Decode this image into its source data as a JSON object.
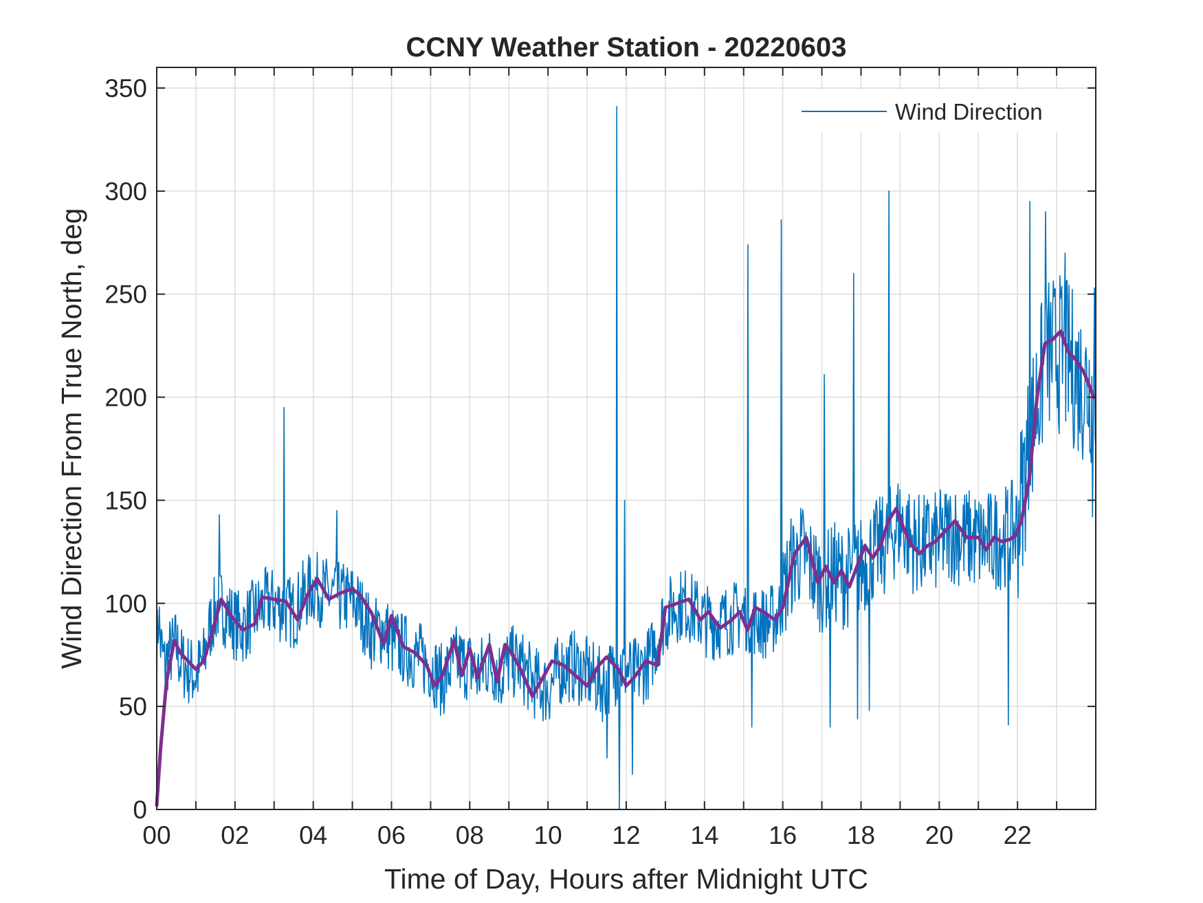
{
  "chart_data": {
    "type": "line",
    "title": "CCNY Weather Station - 20220603",
    "xlabel": "Time of Day, Hours after Midnight UTC",
    "ylabel": "Wind Direction From True North, deg",
    "xlim": [
      0,
      24
    ],
    "ylim": [
      0,
      360
    ],
    "x_ticks": [
      0,
      2,
      4,
      6,
      8,
      10,
      12,
      14,
      16,
      18,
      20,
      22
    ],
    "x_tick_labels": [
      "00",
      "02",
      "04",
      "06",
      "08",
      "10",
      "12",
      "14",
      "16",
      "18",
      "20",
      "22"
    ],
    "y_ticks": [
      0,
      50,
      100,
      150,
      200,
      250,
      300,
      350
    ],
    "y_tick_labels": [
      "0",
      "50",
      "100",
      "150",
      "200",
      "250",
      "300",
      "350"
    ],
    "grid": true,
    "legend": {
      "position": "top-right",
      "entries": [
        "Wind Direction"
      ]
    },
    "series": [
      {
        "name": "Wind Direction",
        "color": "#0072BD",
        "style": "raw",
        "anchors": [
          [
            0,
            75
          ],
          [
            0.05,
            95
          ],
          [
            0.1,
            80
          ],
          [
            0.2,
            70
          ],
          [
            0.3,
            75
          ],
          [
            0.5,
            80
          ],
          [
            0.6,
            72
          ],
          [
            0.8,
            68
          ],
          [
            1.0,
            65
          ],
          [
            1.2,
            72
          ],
          [
            1.4,
            92
          ],
          [
            1.6,
            100
          ],
          [
            1.8,
            95
          ],
          [
            2.0,
            90
          ],
          [
            2.2,
            88
          ],
          [
            2.5,
            95
          ],
          [
            2.8,
            100
          ],
          [
            3.0,
            100
          ],
          [
            3.2,
            98
          ],
          [
            3.5,
            95
          ],
          [
            3.8,
            105
          ],
          [
            4.0,
            108
          ],
          [
            4.3,
            105
          ],
          [
            4.6,
            103
          ],
          [
            5.0,
            102
          ],
          [
            5.2,
            97
          ],
          [
            5.5,
            85
          ],
          [
            5.8,
            88
          ],
          [
            6.0,
            82
          ],
          [
            6.3,
            78
          ],
          [
            6.6,
            75
          ],
          [
            7.0,
            70
          ],
          [
            7.3,
            62
          ],
          [
            7.6,
            72
          ],
          [
            8.0,
            70
          ],
          [
            8.2,
            65
          ],
          [
            8.5,
            72
          ],
          [
            8.8,
            65
          ],
          [
            9.0,
            72
          ],
          [
            9.3,
            70
          ],
          [
            9.6,
            62
          ],
          [
            10.0,
            58
          ],
          [
            10.3,
            68
          ],
          [
            10.6,
            70
          ],
          [
            11.0,
            66
          ],
          [
            11.4,
            60
          ],
          [
            11.8,
            70
          ],
          [
            12.0,
            68
          ],
          [
            12.3,
            66
          ],
          [
            12.6,
            72
          ],
          [
            12.9,
            90
          ],
          [
            13.2,
            98
          ],
          [
            13.5,
            100
          ],
          [
            13.8,
            95
          ],
          [
            14.0,
            92
          ],
          [
            14.3,
            90
          ],
          [
            14.6,
            92
          ],
          [
            15.0,
            95
          ],
          [
            15.3,
            92
          ],
          [
            15.6,
            90
          ],
          [
            15.9,
            95
          ],
          [
            16.2,
            118
          ],
          [
            16.5,
            125
          ],
          [
            16.8,
            115
          ],
          [
            17.0,
            110
          ],
          [
            17.3,
            115
          ],
          [
            17.6,
            112
          ],
          [
            18.0,
            118
          ],
          [
            18.3,
            125
          ],
          [
            18.6,
            128
          ],
          [
            19.0,
            140
          ],
          [
            19.3,
            130
          ],
          [
            19.6,
            128
          ],
          [
            20.0,
            130
          ],
          [
            20.3,
            135
          ],
          [
            20.6,
            132
          ],
          [
            21.0,
            130
          ],
          [
            21.3,
            130
          ],
          [
            21.6,
            132
          ],
          [
            21.9,
            135
          ],
          [
            22.0,
            138
          ],
          [
            22.2,
            165
          ],
          [
            22.5,
            200
          ],
          [
            22.8,
            220
          ],
          [
            23.0,
            222
          ],
          [
            23.3,
            218
          ],
          [
            23.6,
            208
          ],
          [
            23.9,
            205
          ]
        ],
        "spikes": [
          [
            1.6,
            143
          ],
          [
            3.25,
            195
          ],
          [
            4.6,
            145
          ],
          [
            11.5,
            25
          ],
          [
            11.75,
            341
          ],
          [
            11.82,
            0
          ],
          [
            11.95,
            150
          ],
          [
            12.15,
            17
          ],
          [
            15.1,
            274
          ],
          [
            15.2,
            40
          ],
          [
            15.95,
            286
          ],
          [
            16.6,
            120
          ],
          [
            17.05,
            211
          ],
          [
            17.2,
            40
          ],
          [
            17.8,
            260
          ],
          [
            17.9,
            44
          ],
          [
            18.7,
            300
          ],
          [
            18.2,
            48
          ],
          [
            21.75,
            41
          ],
          [
            22.3,
            295
          ],
          [
            22.7,
            290
          ],
          [
            23.0,
            195
          ],
          [
            23.2,
            270
          ],
          [
            23.9,
            142
          ],
          [
            23.95,
            253
          ]
        ],
        "noise_amplitude": 18,
        "samples": 1440
      },
      {
        "name": "",
        "color": "#7E2F8E",
        "style": "smoothed",
        "values_x": [
          0,
          0.1,
          0.25,
          0.45,
          0.6,
          0.8,
          1.0,
          1.2,
          1.4,
          1.65,
          1.9,
          2.2,
          2.5,
          2.7,
          3.0,
          3.3,
          3.6,
          3.85,
          4.1,
          4.4,
          4.7,
          5.0,
          5.2,
          5.5,
          5.8,
          6.0,
          6.3,
          6.6,
          6.9,
          7.1,
          7.3,
          7.6,
          7.8,
          8.0,
          8.2,
          8.5,
          8.7,
          8.9,
          9.1,
          9.3,
          9.6,
          9.9,
          10.1,
          10.4,
          10.7,
          11.0,
          11.3,
          11.5,
          11.8,
          12.0,
          12.2,
          12.5,
          12.8,
          13.0,
          13.3,
          13.6,
          13.9,
          14.1,
          14.4,
          14.7,
          14.9,
          15.1,
          15.3,
          15.5,
          15.8,
          16.0,
          16.3,
          16.6,
          16.9,
          17.1,
          17.3,
          17.5,
          17.7,
          17.9,
          18.1,
          18.3,
          18.5,
          18.7,
          18.9,
          19.1,
          19.3,
          19.5,
          19.7,
          19.9,
          20.1,
          20.4,
          20.7,
          21.0,
          21.2,
          21.4,
          21.6,
          21.8,
          21.95,
          22.1,
          22.3,
          22.5,
          22.7,
          22.9,
          23.1,
          23.3,
          23.5,
          23.7,
          23.95
        ],
        "values_y": [
          2,
          30,
          62,
          82,
          76,
          72,
          68,
          72,
          85,
          102,
          94,
          87,
          90,
          103,
          102,
          101,
          92,
          104,
          112,
          102,
          105,
          107,
          104,
          95,
          80,
          94,
          79,
          76,
          70,
          60,
          65,
          82,
          65,
          78,
          64,
          80,
          62,
          80,
          75,
          68,
          55,
          65,
          72,
          70,
          65,
          60,
          70,
          74,
          68,
          60,
          64,
          72,
          70,
          98,
          100,
          102,
          92,
          96,
          88,
          92,
          96,
          87,
          98,
          96,
          92,
          98,
          124,
          132,
          110,
          118,
          110,
          116,
          108,
          118,
          128,
          122,
          128,
          140,
          146,
          136,
          128,
          124,
          128,
          130,
          134,
          140,
          132,
          132,
          126,
          132,
          130,
          131,
          133,
          140,
          160,
          200,
          226,
          228,
          232,
          222,
          218,
          212,
          200
        ]
      }
    ]
  }
}
